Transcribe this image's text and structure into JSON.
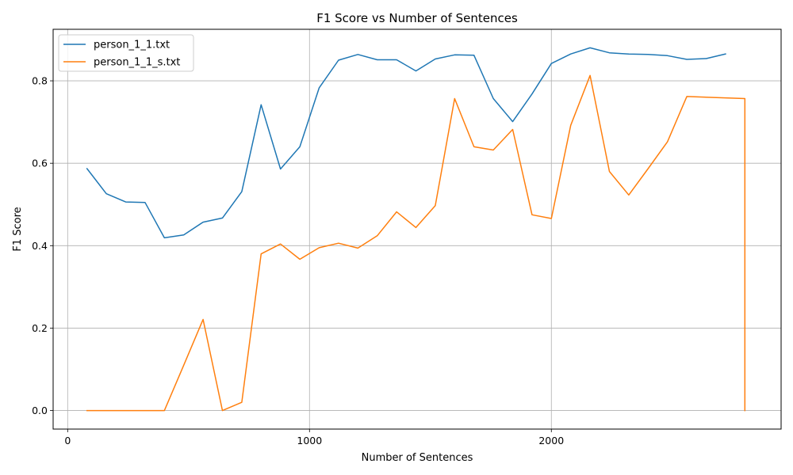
{
  "chart_data": {
    "type": "line",
    "title": "F1 Score vs Number of Sentences",
    "xlabel": "Number of Sentences",
    "ylabel": "F1 Score",
    "xlim": [
      -60,
      2950
    ],
    "ylim": [
      -0.045,
      0.925
    ],
    "xticks": [
      0,
      1000,
      2000
    ],
    "xtick_labels": [
      "0",
      "1000",
      "2000"
    ],
    "yticks": [
      0.0,
      0.2,
      0.4,
      0.6,
      0.8
    ],
    "ytick_labels": [
      "0.0",
      "0.2",
      "0.4",
      "0.6",
      "0.8"
    ],
    "grid": true,
    "legend_position": "top-left",
    "series": [
      {
        "name": "person_1_1.txt",
        "color": "#1f77b4",
        "x": [
          80,
          160,
          240,
          320,
          400,
          480,
          560,
          640,
          720,
          800,
          880,
          960,
          1040,
          1120,
          1200,
          1280,
          1360,
          1440,
          1520,
          1600,
          1680,
          1760,
          1840,
          1920,
          2000,
          2080,
          2160,
          2240,
          2320,
          2400,
          2480,
          2560,
          2640,
          2720
        ],
        "y": [
          0.587,
          0.526,
          0.506,
          0.505,
          0.419,
          0.426,
          0.457,
          0.467,
          0.531,
          0.742,
          0.586,
          0.64,
          0.783,
          0.85,
          0.864,
          0.851,
          0.851,
          0.824,
          0.853,
          0.863,
          0.862,
          0.757,
          0.701,
          0.768,
          0.842,
          0.865,
          0.88,
          0.868,
          0.865,
          0.864,
          0.861,
          0.852,
          0.854,
          0.865
        ]
      },
      {
        "name": "person_1_1_s.txt",
        "color": "#ff7f0e",
        "x": [
          80,
          160,
          240,
          320,
          400,
          480,
          560,
          640,
          720,
          800,
          880,
          960,
          1040,
          1120,
          1200,
          1280,
          1360,
          1440,
          1520,
          1600,
          1680,
          1760,
          1840,
          1920,
          2000,
          2080,
          2160,
          2240,
          2320,
          2400,
          2480,
          2560,
          2800,
          2800
        ],
        "y": [
          0.0,
          0.0,
          0.0,
          0.0,
          0.0,
          0.11,
          0.221,
          0.0,
          0.02,
          0.38,
          0.404,
          0.367,
          0.395,
          0.406,
          0.394,
          0.424,
          0.482,
          0.444,
          0.497,
          0.757,
          0.64,
          0.632,
          0.682,
          0.475,
          0.466,
          0.692,
          0.813,
          0.58,
          0.523,
          0.587,
          0.652,
          0.762,
          0.757,
          0.0
        ]
      }
    ]
  }
}
